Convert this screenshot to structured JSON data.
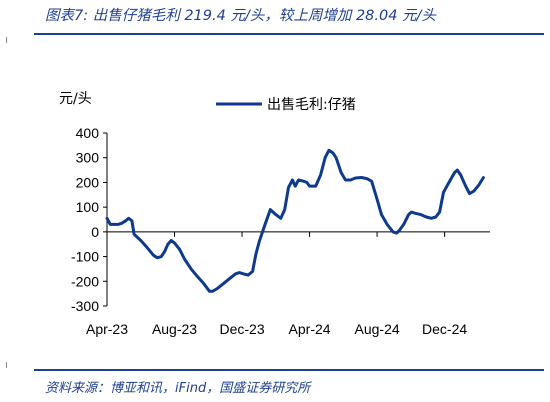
{
  "header": {
    "title": "图表7:  出售仔猪毛利 219.4 元/头，较上周增加 28.04 元/头"
  },
  "footer": {
    "source": "资料来源：博亚和讯，iFind，国盛证券研究所"
  },
  "chart_data": {
    "type": "line",
    "ylabel": "元/头",
    "ylim": [
      -300,
      400
    ],
    "yticks": [
      400,
      300,
      200,
      100,
      0,
      -100,
      -200,
      -300
    ],
    "xticks": [
      {
        "label": "Apr-23",
        "x": "2023-04-01"
      },
      {
        "label": "Aug-23",
        "x": "2023-08-01"
      },
      {
        "label": "Dec-23",
        "x": "2023-12-01"
      },
      {
        "label": "Apr-24",
        "x": "2024-04-01"
      },
      {
        "label": "Aug-24",
        "x": "2024-08-01"
      },
      {
        "label": "Dec-24",
        "x": "2024-12-01"
      }
    ],
    "xlim": [
      "2023-04-01",
      "2025-02-21"
    ],
    "legend": "top-center",
    "grid": false,
    "series": [
      {
        "name": "出售毛利:仔猪",
        "color": "#0d3a8c",
        "points": [
          [
            "2023-04-01",
            55
          ],
          [
            "2023-04-07",
            30
          ],
          [
            "2023-04-21",
            30
          ],
          [
            "2023-04-28",
            35
          ],
          [
            "2023-05-05",
            45
          ],
          [
            "2023-05-10",
            55
          ],
          [
            "2023-05-16",
            45
          ],
          [
            "2023-05-20",
            -10
          ],
          [
            "2023-06-01",
            -35
          ],
          [
            "2023-06-13",
            -65
          ],
          [
            "2023-06-24",
            -95
          ],
          [
            "2023-07-01",
            -105
          ],
          [
            "2023-07-08",
            -100
          ],
          [
            "2023-07-14",
            -80
          ],
          [
            "2023-07-20",
            -50
          ],
          [
            "2023-07-26",
            -35
          ],
          [
            "2023-08-01",
            -45
          ],
          [
            "2023-08-10",
            -70
          ],
          [
            "2023-08-19",
            -110
          ],
          [
            "2023-08-31",
            -150
          ],
          [
            "2023-09-11",
            -180
          ],
          [
            "2023-09-23",
            -210
          ],
          [
            "2023-10-03",
            -240
          ],
          [
            "2023-10-09",
            -240
          ],
          [
            "2023-10-17",
            -230
          ],
          [
            "2023-10-28",
            -210
          ],
          [
            "2023-11-08",
            -190
          ],
          [
            "2023-11-19",
            -170
          ],
          [
            "2023-11-26",
            -165
          ],
          [
            "2023-12-04",
            -170
          ],
          [
            "2023-12-12",
            -175
          ],
          [
            "2023-12-20",
            -160
          ],
          [
            "2023-12-26",
            -90
          ],
          [
            "2024-01-01",
            -40
          ],
          [
            "2024-01-10",
            20
          ],
          [
            "2024-01-21",
            90
          ],
          [
            "2024-01-31",
            70
          ],
          [
            "2024-02-09",
            55
          ],
          [
            "2024-02-16",
            90
          ],
          [
            "2024-02-23",
            180
          ],
          [
            "2024-03-01",
            210
          ],
          [
            "2024-03-06",
            185
          ],
          [
            "2024-03-12",
            210
          ],
          [
            "2024-03-21",
            205
          ],
          [
            "2024-03-27",
            200
          ],
          [
            "2024-04-01",
            185
          ],
          [
            "2024-04-12",
            185
          ],
          [
            "2024-04-21",
            230
          ],
          [
            "2024-04-29",
            300
          ],
          [
            "2024-05-06",
            330
          ],
          [
            "2024-05-13",
            320
          ],
          [
            "2024-05-19",
            300
          ],
          [
            "2024-05-28",
            240
          ],
          [
            "2024-06-05",
            210
          ],
          [
            "2024-06-14",
            210
          ],
          [
            "2024-06-23",
            218
          ],
          [
            "2024-07-04",
            220
          ],
          [
            "2024-07-14",
            215
          ],
          [
            "2024-07-22",
            205
          ],
          [
            "2024-07-31",
            140
          ],
          [
            "2024-08-09",
            70
          ],
          [
            "2024-08-19",
            30
          ],
          [
            "2024-08-30",
            0
          ],
          [
            "2024-09-05",
            -5
          ],
          [
            "2024-09-10",
            5
          ],
          [
            "2024-09-18",
            30
          ],
          [
            "2024-09-27",
            70
          ],
          [
            "2024-10-02",
            80
          ],
          [
            "2024-10-09",
            75
          ],
          [
            "2024-10-19",
            70
          ],
          [
            "2024-10-29",
            60
          ],
          [
            "2024-11-07",
            55
          ],
          [
            "2024-11-15",
            60
          ],
          [
            "2024-11-22",
            80
          ],
          [
            "2024-11-29",
            160
          ],
          [
            "2024-12-09",
            200
          ],
          [
            "2024-12-19",
            240
          ],
          [
            "2024-12-24",
            250
          ],
          [
            "2024-12-30",
            230
          ],
          [
            "2025-01-07",
            190
          ],
          [
            "2025-01-15",
            155
          ],
          [
            "2025-01-23",
            165
          ],
          [
            "2025-02-01",
            190
          ],
          [
            "2025-02-09",
            219.4
          ]
        ]
      }
    ]
  }
}
